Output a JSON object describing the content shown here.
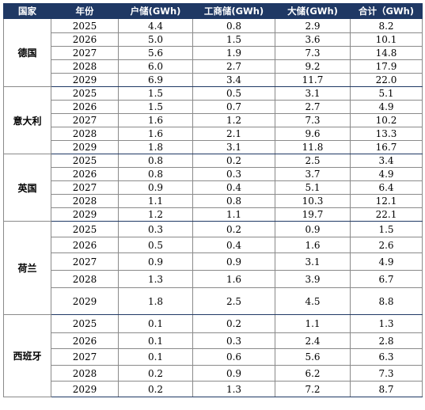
{
  "headers": [
    "国家",
    "年份",
    "户储(GWh)",
    "工商储(GWh)",
    "大储(GWh)",
    "合计（GWh)"
  ],
  "groups": [
    {
      "country": "德国",
      "rows": [
        [
          "2025",
          "4.4",
          "0.8",
          "2.9",
          "8.2"
        ],
        [
          "2026",
          "5.0",
          "1.5",
          "3.6",
          "10.1"
        ],
        [
          "2027",
          "5.6",
          "1.9",
          "7.3",
          "14.8"
        ],
        [
          "2028",
          "6.0",
          "2.7",
          "9.2",
          "17.9"
        ],
        [
          "2029",
          "6.9",
          "3.4",
          "11.7",
          "22.0"
        ]
      ]
    },
    {
      "country": "意大利",
      "rows": [
        [
          "2025",
          "1.5",
          "0.5",
          "3.1",
          "5.1"
        ],
        [
          "2026",
          "1.5",
          "0.7",
          "2.7",
          "4.9"
        ],
        [
          "2027",
          "1.6",
          "1.2",
          "7.3",
          "10.2"
        ],
        [
          "2028",
          "1.6",
          "2.1",
          "9.6",
          "13.3"
        ],
        [
          "2029",
          "1.8",
          "3.1",
          "11.8",
          "16.7"
        ]
      ]
    },
    {
      "country": "英国",
      "rows": [
        [
          "2025",
          "0.8",
          "0.2",
          "2.5",
          "3.4"
        ],
        [
          "2026",
          "0.8",
          "0.3",
          "3.7",
          "4.9"
        ],
        [
          "2027",
          "0.9",
          "0.4",
          "5.1",
          "6.4"
        ],
        [
          "2028",
          "1.1",
          "0.8",
          "10.3",
          "12.1"
        ],
        [
          "2029",
          "1.2",
          "1.1",
          "19.7",
          "22.1"
        ]
      ]
    },
    {
      "country": "荷兰",
      "rows": [
        [
          "2025",
          "0.3",
          "0.2",
          "0.9",
          "1.5"
        ],
        [
          "2026",
          "0.5",
          "0.4",
          "1.6",
          "2.6"
        ],
        [
          "2027",
          "0.9",
          "0.9",
          "3.1",
          "4.9"
        ],
        [
          "2028",
          "1.3",
          "1.6",
          "3.9",
          "6.7"
        ],
        [
          "2029",
          "1.8",
          "2.5",
          "4.5",
          "8.8"
        ]
      ]
    },
    {
      "country": "西班牙",
      "rows": [
        [
          "2025",
          "0.1",
          "0.2",
          "1.1",
          "1.3"
        ],
        [
          "2026",
          "0.1",
          "0.3",
          "2.4",
          "2.8"
        ],
        [
          "2027",
          "0.1",
          "0.6",
          "5.6",
          "6.3"
        ],
        [
          "2028",
          "0.2",
          "0.9",
          "6.2",
          "7.3"
        ],
        [
          "2029",
          "0.2",
          "1.3",
          "7.2",
          "8.7"
        ]
      ]
    }
  ]
}
